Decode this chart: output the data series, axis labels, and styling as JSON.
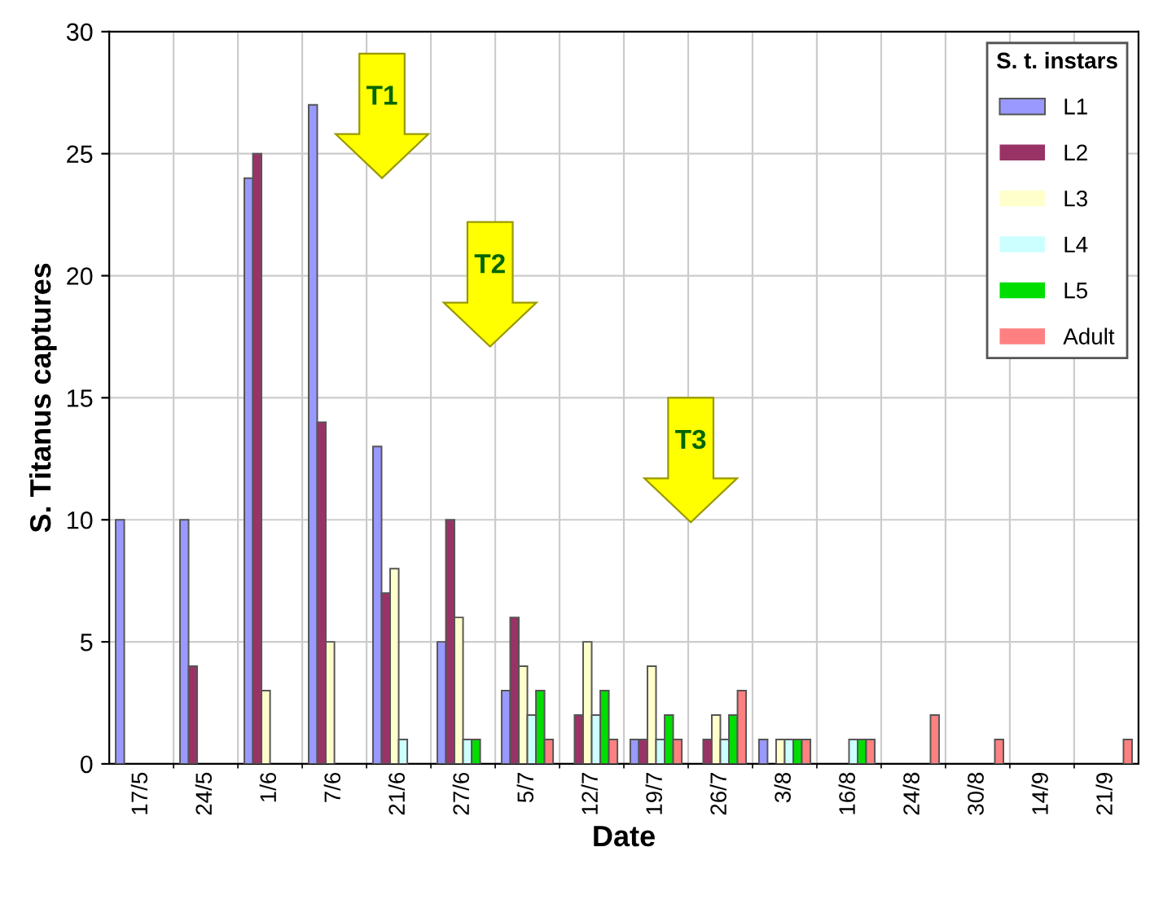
{
  "chart_data": {
    "type": "bar",
    "xlabel": "Date",
    "ylabel": "S. Titanus captures",
    "legend_title": "S. t. instars",
    "categories": [
      "17/5",
      "24/5",
      "1/6",
      "7/6",
      "21/6",
      "27/6",
      "5/7",
      "12/7",
      "19/7",
      "26/7",
      "3/8",
      "16/8",
      "24/8",
      "30/8",
      "14/9",
      "21/9"
    ],
    "series": [
      {
        "name": "L1",
        "color": "#9999ff",
        "values": [
          10,
          10,
          24,
          27,
          13,
          5,
          3,
          0,
          1,
          0,
          1,
          0,
          0,
          0,
          0,
          0
        ]
      },
      {
        "name": "L2",
        "color": "#993366",
        "values": [
          0,
          4,
          25,
          14,
          7,
          10,
          6,
          2,
          1,
          1,
          0,
          0,
          0,
          0,
          0,
          0
        ]
      },
      {
        "name": "L3",
        "color": "#ffffcc",
        "values": [
          0,
          0,
          3,
          5,
          8,
          6,
          4,
          5,
          4,
          2,
          1,
          0,
          0,
          0,
          0,
          0
        ]
      },
      {
        "name": "L4",
        "color": "#ccffff",
        "values": [
          0,
          0,
          0,
          0,
          1,
          1,
          2,
          2,
          1,
          1,
          1,
          1,
          0,
          0,
          0,
          0
        ]
      },
      {
        "name": "L5",
        "color": "#00dd00",
        "values": [
          0,
          0,
          0,
          0,
          0,
          1,
          3,
          3,
          2,
          2,
          1,
          1,
          0,
          0,
          0,
          0
        ]
      },
      {
        "name": "Adult",
        "color": "#ff8080",
        "values": [
          0,
          0,
          0,
          0,
          0,
          0,
          1,
          1,
          1,
          3,
          1,
          1,
          2,
          1,
          0,
          1
        ]
      }
    ],
    "ylim": [
      0,
      30
    ],
    "yticks": [
      0,
      5,
      10,
      15,
      20,
      25,
      30
    ],
    "grid": true,
    "legend": "top right",
    "annotations": [
      "T1",
      "T2",
      "T3"
    ]
  }
}
